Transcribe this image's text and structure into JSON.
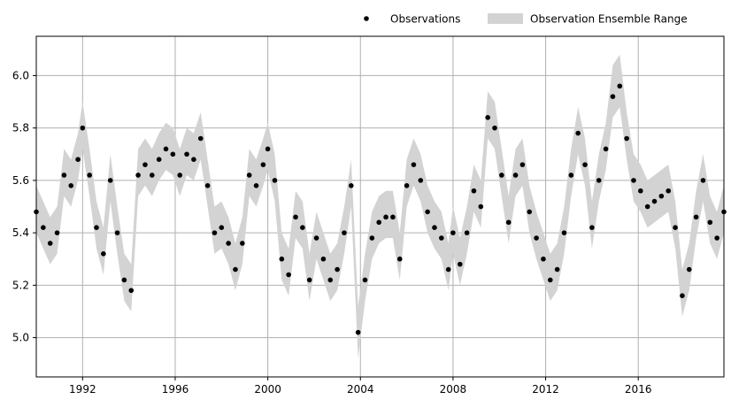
{
  "chart_data": {
    "type": "scatter",
    "title": "",
    "xlabel": "",
    "ylabel": "",
    "xlim": [
      1990.0,
      2019.7
    ],
    "ylim": [
      4.85,
      6.15
    ],
    "grid": true,
    "legend_placement": "top-right, above plot",
    "x_ticks": [
      1992,
      1996,
      2000,
      2004,
      2008,
      2012,
      2016
    ],
    "x_tick_labels": [
      "1992",
      "1996",
      "2000",
      "2004",
      "2008",
      "2012",
      "2016"
    ],
    "y_ticks": [
      5.0,
      5.2,
      5.4,
      5.6,
      5.8,
      6.0
    ],
    "y_tick_labels": [
      "5.0",
      "5.2",
      "5.4",
      "5.6",
      "5.8",
      "6.0"
    ],
    "colors": {
      "observations": "#000000",
      "ensemble_range": "#d3d3d3",
      "grid": "#b0b0b0"
    },
    "series": [
      {
        "name": "Observations",
        "kind": "points",
        "x": [
          1990.0,
          1990.3,
          1990.6,
          1990.9,
          1991.2,
          1991.5,
          1991.8,
          1992.0,
          1992.3,
          1992.6,
          1992.9,
          1993.2,
          1993.5,
          1993.8,
          1994.1,
          1994.4,
          1994.7,
          1995.0,
          1995.3,
          1995.6,
          1995.9,
          1996.2,
          1996.5,
          1996.8,
          1997.1,
          1997.4,
          1997.7,
          1998.0,
          1998.3,
          1998.6,
          1998.9,
          1999.2,
          1999.5,
          1999.8,
          2000.0,
          2000.3,
          2000.6,
          2000.9,
          2001.2,
          2001.5,
          2001.8,
          2002.1,
          2002.4,
          2002.7,
          2003.0,
          2003.3,
          2003.6,
          2003.9,
          2004.2,
          2004.5,
          2004.8,
          2005.1,
          2005.4,
          2005.7,
          2006.0,
          2006.3,
          2006.6,
          2006.9,
          2007.2,
          2007.5,
          2007.8,
          2008.0,
          2008.3,
          2008.6,
          2008.9,
          2009.2,
          2009.5,
          2009.8,
          2010.1,
          2010.4,
          2010.7,
          2011.0,
          2011.3,
          2011.6,
          2011.9,
          2012.2,
          2012.5,
          2012.8,
          2013.1,
          2013.4,
          2013.7,
          2014.0,
          2014.3,
          2014.6,
          2014.9,
          2015.2,
          2015.5,
          2015.8,
          2016.1,
          2016.4,
          2016.7,
          2017.0,
          2017.3,
          2017.6,
          2017.9,
          2018.2,
          2018.5,
          2018.8,
          2019.1,
          2019.4,
          2019.7
        ],
        "y": [
          5.48,
          5.42,
          5.36,
          5.4,
          5.62,
          5.58,
          5.68,
          5.8,
          5.62,
          5.42,
          5.32,
          5.6,
          5.4,
          5.22,
          5.18,
          5.62,
          5.66,
          5.62,
          5.68,
          5.72,
          5.7,
          5.62,
          5.7,
          5.68,
          5.76,
          5.58,
          5.4,
          5.42,
          5.36,
          5.26,
          5.36,
          5.62,
          5.58,
          5.66,
          5.72,
          5.6,
          5.3,
          5.24,
          5.46,
          5.42,
          5.22,
          5.38,
          5.3,
          5.22,
          5.26,
          5.4,
          5.58,
          5.02,
          5.22,
          5.38,
          5.44,
          5.46,
          5.46,
          5.3,
          5.58,
          5.66,
          5.6,
          5.48,
          5.42,
          5.38,
          5.26,
          5.4,
          5.28,
          5.4,
          5.56,
          5.5,
          5.84,
          5.8,
          5.62,
          5.44,
          5.62,
          5.66,
          5.48,
          5.38,
          5.3,
          5.22,
          5.26,
          5.4,
          5.62,
          5.78,
          5.66,
          5.42,
          5.6,
          5.72,
          5.92,
          5.96,
          5.76,
          5.6,
          5.56,
          5.5,
          5.52,
          5.54,
          5.56,
          5.42,
          5.16,
          5.26,
          5.46,
          5.6,
          5.44,
          5.38,
          5.48
        ]
      },
      {
        "name": "Observation Ensemble Range",
        "kind": "band",
        "x": [
          1990.0,
          1990.3,
          1990.6,
          1990.9,
          1991.2,
          1991.5,
          1991.8,
          1992.0,
          1992.3,
          1992.6,
          1992.9,
          1993.2,
          1993.5,
          1993.8,
          1994.1,
          1994.4,
          1994.7,
          1995.0,
          1995.3,
          1995.6,
          1995.9,
          1996.2,
          1996.5,
          1996.8,
          1997.1,
          1997.4,
          1997.7,
          1998.0,
          1998.3,
          1998.6,
          1998.9,
          1999.2,
          1999.5,
          1999.8,
          2000.0,
          2000.3,
          2000.6,
          2000.9,
          2001.2,
          2001.5,
          2001.8,
          2002.1,
          2002.4,
          2002.7,
          2003.0,
          2003.3,
          2003.6,
          2003.9,
          2004.2,
          2004.5,
          2004.8,
          2005.1,
          2005.4,
          2005.7,
          2006.0,
          2006.3,
          2006.6,
          2006.9,
          2007.2,
          2007.5,
          2007.8,
          2008.0,
          2008.3,
          2008.6,
          2008.9,
          2009.2,
          2009.5,
          2009.8,
          2010.1,
          2010.4,
          2010.7,
          2011.0,
          2011.3,
          2011.6,
          2011.9,
          2012.2,
          2012.5,
          2012.8,
          2013.1,
          2013.4,
          2013.7,
          2014.0,
          2014.3,
          2014.6,
          2014.9,
          2015.2,
          2015.5,
          2015.8,
          2016.1,
          2016.4,
          2016.7,
          2017.0,
          2017.3,
          2017.6,
          2017.9,
          2018.2,
          2018.5,
          2018.8,
          2019.1,
          2019.4,
          2019.7
        ],
        "lower": [
          5.4,
          5.34,
          5.28,
          5.32,
          5.54,
          5.5,
          5.6,
          5.72,
          5.54,
          5.34,
          5.24,
          5.52,
          5.32,
          5.14,
          5.1,
          5.54,
          5.58,
          5.54,
          5.6,
          5.64,
          5.62,
          5.54,
          5.62,
          5.6,
          5.68,
          5.5,
          5.32,
          5.34,
          5.28,
          5.18,
          5.28,
          5.54,
          5.5,
          5.58,
          5.64,
          5.52,
          5.22,
          5.16,
          5.38,
          5.34,
          5.14,
          5.3,
          5.22,
          5.14,
          5.18,
          5.32,
          5.5,
          4.92,
          5.14,
          5.3,
          5.36,
          5.38,
          5.38,
          5.22,
          5.5,
          5.58,
          5.52,
          5.4,
          5.34,
          5.3,
          5.18,
          5.32,
          5.2,
          5.32,
          5.48,
          5.42,
          5.76,
          5.72,
          5.54,
          5.36,
          5.54,
          5.58,
          5.4,
          5.3,
          5.22,
          5.14,
          5.18,
          5.32,
          5.54,
          5.7,
          5.58,
          5.34,
          5.52,
          5.64,
          5.84,
          5.88,
          5.68,
          5.52,
          5.48,
          5.42,
          5.44,
          5.46,
          5.48,
          5.34,
          5.08,
          5.18,
          5.38,
          5.52,
          5.36,
          5.3,
          5.4
        ],
        "upper": [
          5.58,
          5.52,
          5.46,
          5.5,
          5.72,
          5.68,
          5.78,
          5.9,
          5.72,
          5.52,
          5.42,
          5.7,
          5.5,
          5.32,
          5.28,
          5.72,
          5.76,
          5.72,
          5.78,
          5.82,
          5.8,
          5.72,
          5.8,
          5.78,
          5.86,
          5.68,
          5.5,
          5.52,
          5.46,
          5.36,
          5.46,
          5.72,
          5.68,
          5.76,
          5.82,
          5.7,
          5.4,
          5.34,
          5.56,
          5.52,
          5.32,
          5.48,
          5.4,
          5.32,
          5.36,
          5.5,
          5.68,
          5.12,
          5.32,
          5.48,
          5.54,
          5.56,
          5.56,
          5.4,
          5.68,
          5.76,
          5.7,
          5.58,
          5.52,
          5.48,
          5.36,
          5.5,
          5.38,
          5.5,
          5.66,
          5.6,
          5.94,
          5.9,
          5.72,
          5.54,
          5.72,
          5.76,
          5.58,
          5.48,
          5.4,
          5.32,
          5.36,
          5.5,
          5.72,
          5.88,
          5.76,
          5.52,
          5.7,
          5.82,
          6.04,
          6.08,
          5.86,
          5.7,
          5.66,
          5.6,
          5.62,
          5.64,
          5.66,
          5.52,
          5.26,
          5.36,
          5.56,
          5.7,
          5.54,
          5.48,
          5.58
        ]
      }
    ]
  }
}
